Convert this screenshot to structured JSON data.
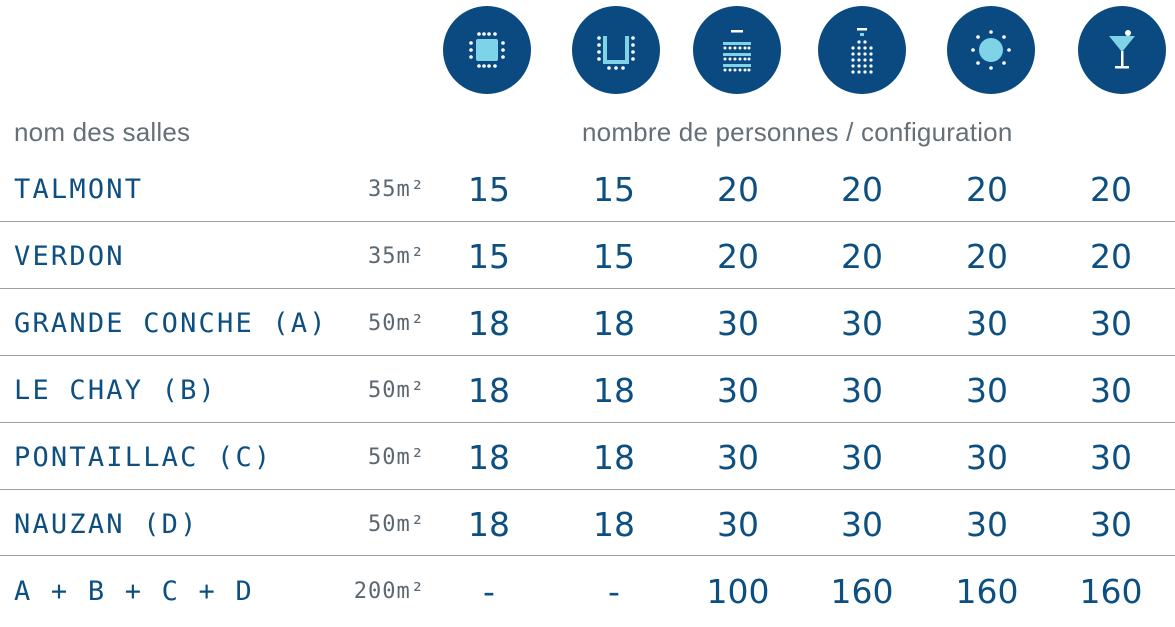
{
  "header": {
    "rooms_label": "nom des salles",
    "capacity_label": "nombre de personnes / configuration"
  },
  "config_icons": [
    "boardroom-icon",
    "u-shape-icon",
    "classroom-icon",
    "theatre-icon",
    "banquet-icon",
    "cocktail-icon"
  ],
  "rows": [
    {
      "name": "TALMONT",
      "area": "35m²",
      "values": [
        "15",
        "15",
        "20",
        "20",
        "20",
        "20"
      ]
    },
    {
      "name": "VERDON",
      "area": "35m²",
      "values": [
        "15",
        "15",
        "20",
        "20",
        "20",
        "20"
      ]
    },
    {
      "name": "GRANDE CONCHE (A)",
      "area": "50m²",
      "values": [
        "18",
        "18",
        "30",
        "30",
        "30",
        "30"
      ]
    },
    {
      "name": "LE CHAY (B)",
      "area": "50m²",
      "values": [
        "18",
        "18",
        "30",
        "30",
        "30",
        "30"
      ]
    },
    {
      "name": "PONTAILLAC (C)",
      "area": "50m²",
      "values": [
        "18",
        "18",
        "30",
        "30",
        "30",
        "30"
      ]
    },
    {
      "name": "NAUZAN (D)",
      "area": "50m²",
      "values": [
        "18",
        "18",
        "30",
        "30",
        "30",
        "30"
      ]
    },
    {
      "name": "A + B + C + D",
      "area": "200m²",
      "values": [
        "-",
        "-",
        "100",
        "160",
        "160",
        "160"
      ]
    }
  ],
  "colors": {
    "primary": "#0b4a80",
    "icon_light": "#7fd3e6",
    "text_grey": "#666f76",
    "separator": "#9aa2a8"
  }
}
